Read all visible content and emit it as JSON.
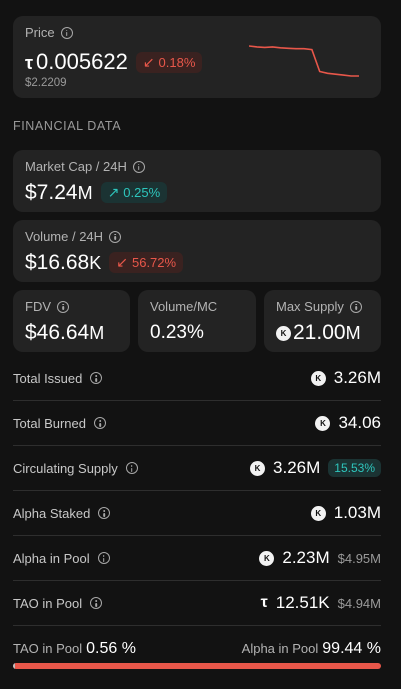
{
  "price": {
    "label": "Price",
    "symbol": "τ",
    "value": "0.005622",
    "change": "0.18%",
    "usd": "$2.2209",
    "sparkline": [
      1.0,
      0.99,
      0.985,
      0.99,
      0.98,
      0.975,
      0.97,
      0.97,
      0.96,
      0.72,
      0.7,
      0.69,
      0.68,
      0.67,
      0.67
    ]
  },
  "section_title": "FINANCIAL DATA",
  "market_cap": {
    "label": "Market Cap / 24H",
    "value": "$7.24",
    "unit": "M",
    "change": "0.25%"
  },
  "volume": {
    "label": "Volume / 24H",
    "value": "$16.68",
    "unit": "K",
    "change": "56.72%"
  },
  "fdv": {
    "label": "FDV",
    "value": "$46.64",
    "unit": "M"
  },
  "volume_mc": {
    "label": "Volume/MC",
    "value": "0.23%"
  },
  "max_supply": {
    "label": "Max Supply",
    "value": "21.00",
    "unit": "M"
  },
  "rows": [
    {
      "label": "Total Issued",
      "value": "3.26M"
    },
    {
      "label": "Total Burned",
      "value": "34.06"
    },
    {
      "label": "Circulating Supply",
      "value": "3.26M",
      "badge": "15.53%"
    },
    {
      "label": "Alpha Staked",
      "value": "1.03M"
    },
    {
      "label": "Alpha in Pool",
      "value": "2.23M",
      "sub": "$4.95M"
    },
    {
      "label": "TAO in Pool",
      "value": "12.51K",
      "sub": "$4.94M"
    }
  ],
  "pool_split": {
    "tao_label": "TAO in Pool",
    "tao_pct": "0.56 %",
    "alpha_label": "Alpha in Pool",
    "alpha_pct": "99.44 %",
    "tao_fraction": 0.0056
  },
  "colors": {
    "red": "#e8574a",
    "teal": "#2ec6bd"
  }
}
